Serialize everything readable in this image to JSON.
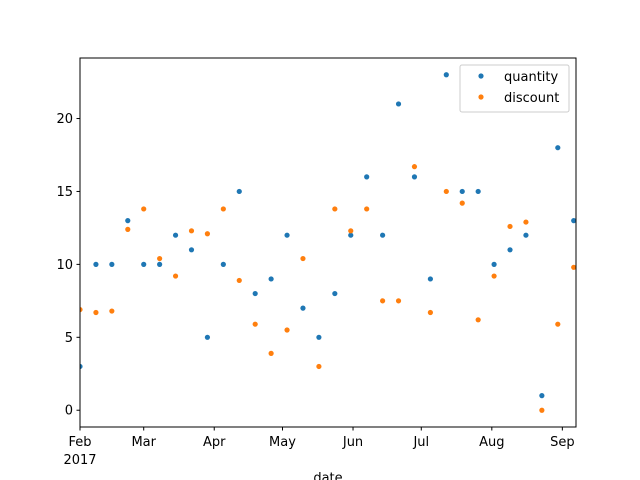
{
  "chart_data": {
    "type": "scatter",
    "xlabel": "date",
    "ylabel": "",
    "x_range": [
      "2017-02-01",
      "2017-09-07"
    ],
    "ylim": [
      -1.15,
      24.15
    ],
    "y_ticks": [
      0,
      5,
      10,
      15,
      20
    ],
    "x_ticks": [
      {
        "date": "2017-02-01",
        "label": "Feb",
        "sublabel": "2017"
      },
      {
        "date": "2017-03-01",
        "label": "Mar"
      },
      {
        "date": "2017-04-01",
        "label": "Apr"
      },
      {
        "date": "2017-05-01",
        "label": "May"
      },
      {
        "date": "2017-06-01",
        "label": "Jun"
      },
      {
        "date": "2017-07-01",
        "label": "Jul"
      },
      {
        "date": "2017-08-01",
        "label": "Aug"
      },
      {
        "date": "2017-09-01",
        "label": "Sep"
      }
    ],
    "grid": false,
    "legend_position": "top-right",
    "x": [
      "2017-02-01",
      "2017-02-08",
      "2017-02-15",
      "2017-02-22",
      "2017-03-01",
      "2017-03-08",
      "2017-03-15",
      "2017-03-22",
      "2017-03-29",
      "2017-04-05",
      "2017-04-12",
      "2017-04-19",
      "2017-04-26",
      "2017-05-03",
      "2017-05-10",
      "2017-05-17",
      "2017-05-24",
      "2017-05-31",
      "2017-06-07",
      "2017-06-14",
      "2017-06-21",
      "2017-06-28",
      "2017-07-05",
      "2017-07-12",
      "2017-07-19",
      "2017-07-26",
      "2017-08-02",
      "2017-08-09",
      "2017-08-16",
      "2017-08-23",
      "2017-08-30",
      "2017-09-06"
    ],
    "series": [
      {
        "name": "quantity",
        "color": "#1f77b4",
        "values": [
          3,
          10,
          10,
          13,
          10,
          10,
          12,
          11,
          5,
          10,
          15,
          8,
          9,
          12,
          7,
          5,
          8,
          12,
          16,
          12,
          21,
          16,
          9,
          23,
          15,
          15,
          10,
          11,
          12,
          1,
          18,
          13
        ]
      },
      {
        "name": "discount",
        "color": "#ff7f0e",
        "values": [
          6.9,
          6.7,
          6.8,
          12.4,
          13.8,
          10.4,
          9.2,
          12.3,
          12.1,
          13.8,
          8.9,
          5.9,
          3.9,
          5.5,
          10.4,
          3.0,
          13.8,
          12.3,
          13.8,
          7.5,
          7.5,
          16.7,
          6.7,
          15.0,
          14.2,
          6.2,
          9.2,
          12.6,
          12.9,
          0.0,
          5.9,
          9.8
        ]
      }
    ]
  }
}
